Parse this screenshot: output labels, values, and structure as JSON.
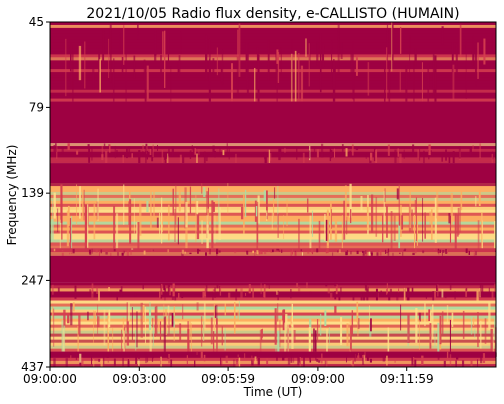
{
  "chart_data": {
    "type": "heatmap",
    "title": "2021/10/05  Radio flux density, e-CALLISTO (HUMAIN)",
    "xlabel": "Time (UT)",
    "ylabel": "Frequency (MHz)",
    "x_ticks": [
      "09:00:00",
      "09:03:00",
      "09:05:59",
      "09:09:00",
      "09:11:59"
    ],
    "y_ticks": [
      "45",
      "79",
      "139",
      "247",
      "437"
    ],
    "ylim": [
      45,
      437
    ],
    "y_scale": "log",
    "y_inverted": true,
    "xlim": [
      "09:00:00",
      "09:14:59"
    ],
    "colormap": "Spectral",
    "colors": {
      "low": "#9e0142",
      "mid_low": "#d53e4f",
      "mid": "#fdae61",
      "mid_high": "#fee08b",
      "high": "#abdda4",
      "peak": "#66c2a5"
    },
    "bands_mhz": [
      {
        "from": 45,
        "to": 76,
        "level": "mixed-low"
      },
      {
        "from": 76,
        "to": 100,
        "level": "saturated-low"
      },
      {
        "from": 100,
        "to": 114,
        "level": "mixed-low"
      },
      {
        "from": 114,
        "to": 130,
        "level": "saturated-low"
      },
      {
        "from": 130,
        "to": 200,
        "level": "bright-mixed"
      },
      {
        "from": 200,
        "to": 210,
        "level": "mixed-low"
      },
      {
        "from": 210,
        "to": 250,
        "level": "saturated-low"
      },
      {
        "from": 250,
        "to": 282,
        "level": "mixed-low"
      },
      {
        "from": 282,
        "to": 395,
        "level": "bright-mixed"
      },
      {
        "from": 395,
        "to": 437,
        "level": "mixed-low"
      }
    ]
  }
}
